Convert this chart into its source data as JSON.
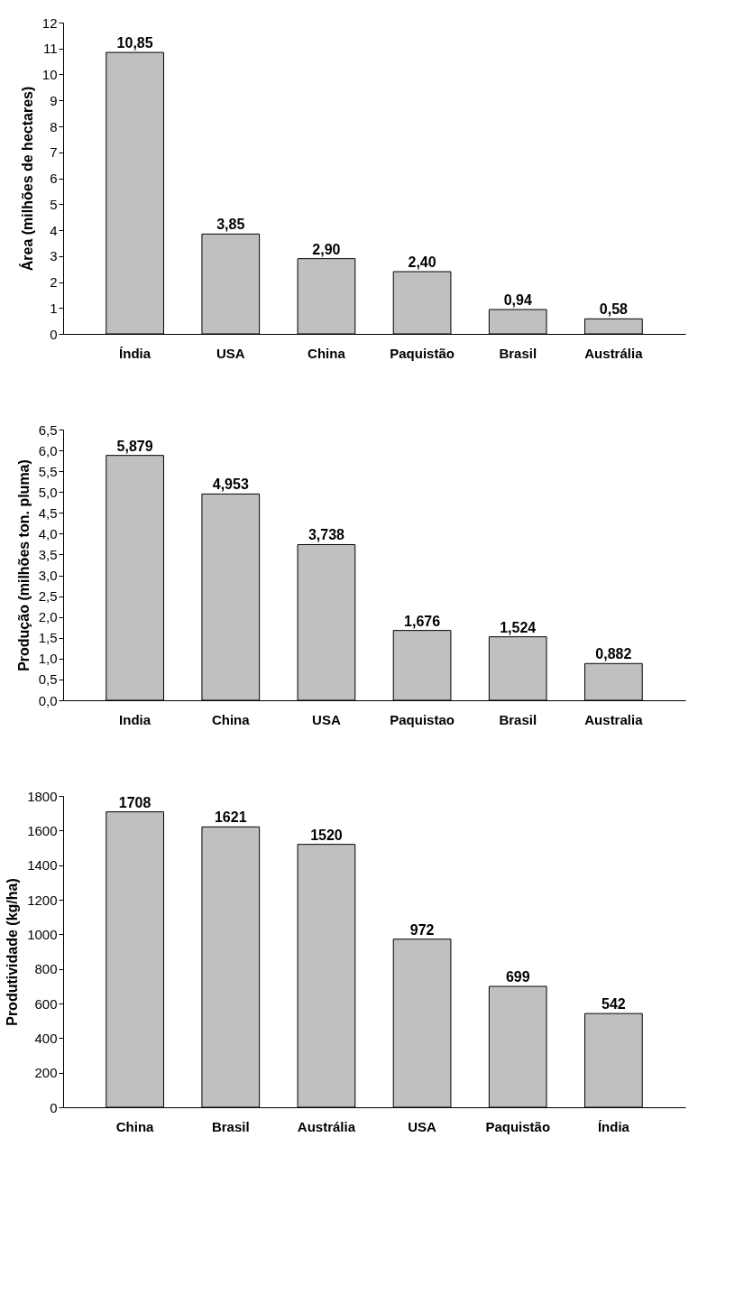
{
  "chart_data": [
    {
      "type": "bar",
      "ylabel": "Área (milhões de hectares)",
      "categories": [
        "Índia",
        "USA",
        "China",
        "Paquistão",
        "Brasil",
        "Austrália"
      ],
      "values": [
        10.85,
        3.85,
        2.9,
        2.4,
        0.94,
        0.58
      ],
      "value_labels": [
        "10,85",
        "3,85",
        "2,90",
        "2,40",
        "0,94",
        "0,58"
      ],
      "color": "#c0c0c0",
      "ylim": [
        0,
        12
      ],
      "yticks": [
        0,
        1,
        2,
        3,
        4,
        5,
        6,
        7,
        8,
        9,
        10,
        11,
        12
      ],
      "grid": false
    },
    {
      "type": "bar",
      "ylabel": "Produção (milhões ton. pluma)",
      "categories": [
        "India",
        "China",
        "USA",
        "Paquistao",
        "Brasil",
        "Australia"
      ],
      "values": [
        5.879,
        4.953,
        3.738,
        1.676,
        1.524,
        0.882
      ],
      "value_labels": [
        "5,879",
        "4,953",
        "3,738",
        "1,676",
        "1,524",
        "0,882"
      ],
      "color": "#c0c0c0",
      "ylim": [
        0,
        6.5
      ],
      "yticks": [
        {
          "value": 0,
          "label": "0,0"
        },
        {
          "value": 0.5,
          "label": "0,5"
        },
        {
          "value": 1,
          "label": "1,0"
        },
        {
          "value": 1.5,
          "label": "1,5"
        },
        {
          "value": 2,
          "label": "2,0"
        },
        {
          "value": 2.5,
          "label": "2,5"
        },
        {
          "value": 3,
          "label": "3,0"
        },
        {
          "value": 3.5,
          "label": "3,5"
        },
        {
          "value": 4,
          "label": "4,0"
        },
        {
          "value": 4.5,
          "label": "4,5"
        },
        {
          "value": 5,
          "label": "5,0"
        },
        {
          "value": 5.5,
          "label": "5,5"
        },
        {
          "value": 6,
          "label": "6,0"
        },
        {
          "value": 6.5,
          "label": "6,5"
        }
      ],
      "grid": false
    },
    {
      "type": "bar",
      "ylabel": "Produtividade (kg/ha)",
      "categories": [
        "China",
        "Brasil",
        "Austrália",
        "USA",
        "Paquistão",
        "Índia"
      ],
      "values": [
        1708,
        1621,
        1520,
        972,
        699,
        542
      ],
      "data_labels": true,
      "color": "#c0c0c0",
      "ylim": [
        0,
        1800
      ],
      "yticks": [
        0,
        200,
        400,
        600,
        800,
        1000,
        1200,
        1400,
        1600,
        1800
      ],
      "grid": false
    }
  ]
}
